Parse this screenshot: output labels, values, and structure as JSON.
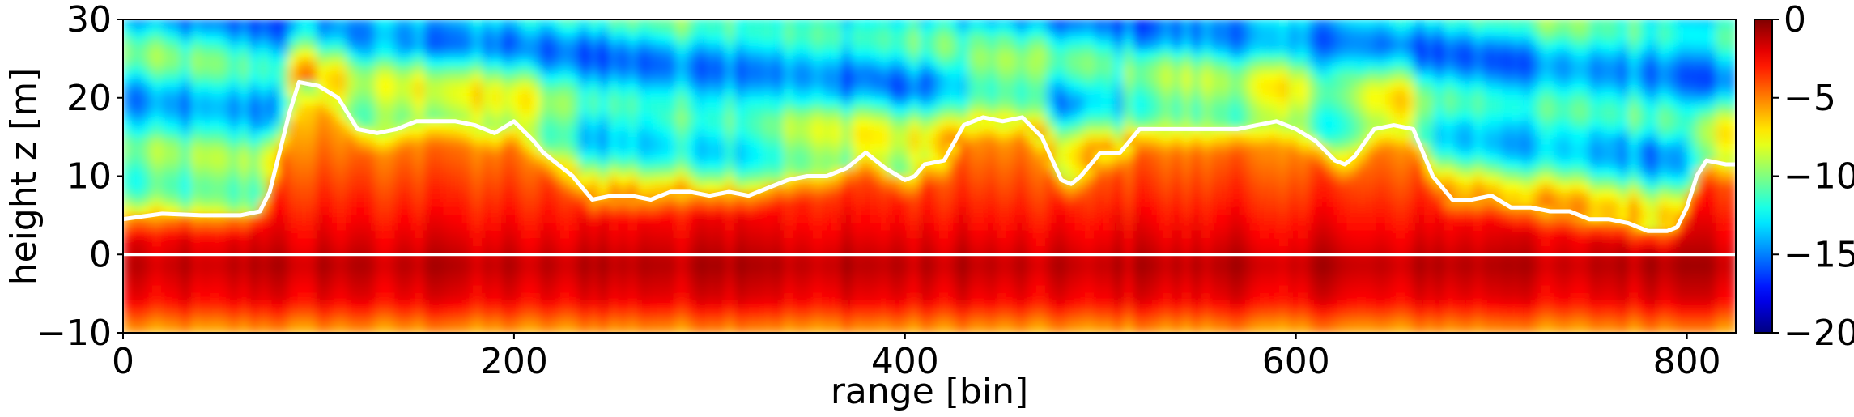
{
  "chart_data": {
    "type": "heatmap",
    "xlabel": "range [bin]",
    "ylabel": "height z [m]",
    "xlim": [
      0,
      825
    ],
    "ylim": [
      -10,
      30
    ],
    "x_ticks": [
      0,
      200,
      400,
      600,
      800
    ],
    "y_ticks": [
      -10,
      0,
      10,
      20,
      30
    ],
    "colormap": "jet",
    "colorbar": {
      "range": [
        -20,
        0
      ],
      "ticks": [
        0,
        -5,
        -10,
        -15,
        -20
      ]
    },
    "grid": false,
    "reference_line": {
      "y": 0,
      "color": "#ffffff"
    },
    "surface_line": {
      "color": "#ffffff",
      "x": [
        0,
        20,
        40,
        60,
        70,
        75,
        80,
        85,
        90,
        100,
        110,
        120,
        130,
        140,
        150,
        160,
        170,
        180,
        190,
        200,
        210,
        215,
        220,
        230,
        240,
        250,
        260,
        270,
        280,
        290,
        300,
        310,
        320,
        330,
        340,
        350,
        360,
        370,
        380,
        390,
        400,
        405,
        410,
        420,
        430,
        440,
        450,
        460,
        470,
        480,
        485,
        490,
        500,
        510,
        520,
        530,
        540,
        550,
        560,
        570,
        580,
        590,
        600,
        610,
        620,
        625,
        630,
        640,
        650,
        660,
        670,
        680,
        690,
        700,
        710,
        720,
        730,
        740,
        750,
        760,
        770,
        780,
        790,
        795,
        800,
        805,
        810,
        820,
        825
      ],
      "z": [
        4.5,
        5.2,
        5,
        5,
        5.5,
        8,
        13,
        18,
        22,
        21.5,
        20,
        16,
        15.5,
        16,
        17,
        17,
        17,
        16.5,
        15.5,
        17,
        14.5,
        13,
        12,
        10,
        7,
        7.5,
        7.5,
        7,
        8,
        8,
        7.5,
        8,
        7.5,
        8.5,
        9.5,
        10,
        10,
        11,
        13,
        11,
        9.5,
        10,
        11.5,
        12,
        16.5,
        17.5,
        17,
        17.5,
        15,
        9.5,
        9,
        10,
        13,
        13,
        16,
        16,
        16,
        16,
        16,
        16,
        16.5,
        17,
        16,
        14.5,
        12,
        11.5,
        12.5,
        16,
        16.5,
        16,
        10,
        7,
        7,
        7.5,
        6,
        6,
        5.5,
        5.5,
        4.5,
        4.5,
        4,
        3,
        3,
        3.5,
        6,
        10,
        12,
        11.5,
        11.5
      ]
    }
  }
}
